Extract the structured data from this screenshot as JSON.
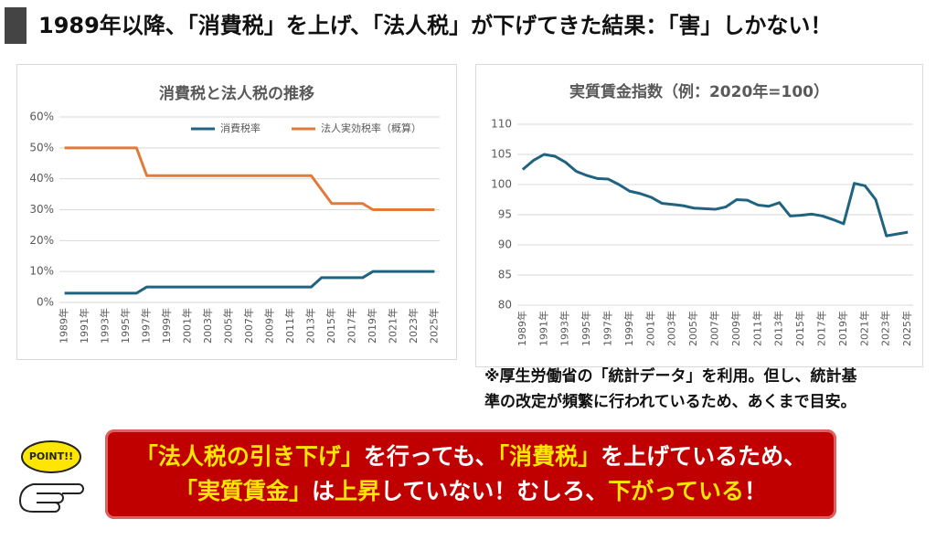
{
  "header": {
    "title": "1989年以降、「消費税」を上げ、「法人税」が下げてきた結果：「害」しかない！"
  },
  "chart_data": [
    {
      "type": "line",
      "title": "消費税と法人税の推移",
      "legend": "top",
      "categories": [
        "1989年",
        null,
        "1991年",
        null,
        "1993年",
        null,
        "1995年",
        null,
        "1997年",
        null,
        "1999年",
        null,
        "2001年",
        null,
        "2003年",
        null,
        "2005年",
        null,
        "2007年",
        null,
        "2009年",
        null,
        "2011年",
        null,
        "2013年",
        null,
        "2015年",
        null,
        "2017年",
        null,
        "2019年",
        null,
        "2021年",
        null,
        "2023年",
        null,
        "2025年"
      ],
      "series": [
        {
          "name": "消費税率",
          "color": "#1f6380",
          "values": [
            3,
            3,
            3,
            3,
            3,
            3,
            3,
            3,
            5,
            5,
            5,
            5,
            5,
            5,
            5,
            5,
            5,
            5,
            5,
            5,
            5,
            5,
            5,
            5,
            5,
            8,
            8,
            8,
            8,
            8,
            10,
            10,
            10,
            10,
            10,
            10,
            10
          ]
        },
        {
          "name": "法人実効税率（概算）",
          "color": "#e07b39",
          "values": [
            50,
            50,
            50,
            50,
            50,
            50,
            50,
            50,
            41,
            41,
            41,
            41,
            41,
            41,
            41,
            41,
            41,
            41,
            41,
            41,
            41,
            41,
            41,
            41,
            41,
            36.5,
            32,
            32,
            32,
            32,
            30,
            30,
            30,
            30,
            30,
            30,
            30
          ]
        }
      ],
      "ylim": [
        0,
        60
      ],
      "yticks": [
        {
          "value": 0,
          "label": "0%"
        },
        {
          "value": 10,
          "label": "10%"
        },
        {
          "value": 20,
          "label": "20%"
        },
        {
          "value": 30,
          "label": "30%"
        },
        {
          "value": 40,
          "label": "40%"
        },
        {
          "value": 50,
          "label": "50%"
        },
        {
          "value": 60,
          "label": "60%"
        }
      ],
      "grid": true
    },
    {
      "type": "line",
      "title": "実質賃金指数（例：2020年=100）",
      "categories": [
        "1989年",
        null,
        "1991年",
        null,
        "1993年",
        null,
        "1995年",
        null,
        "1997年",
        null,
        "1999年",
        null,
        "2001年",
        null,
        "2003年",
        null,
        "2005年",
        null,
        "2007年",
        null,
        "2009年",
        null,
        "2011年",
        null,
        "2013年",
        null,
        "2015年",
        null,
        "2017年",
        null,
        "2019年",
        null,
        "2021年",
        null,
        "2023年",
        null,
        "2025年"
      ],
      "values": [
        102.5,
        104,
        105,
        104.7,
        103.7,
        102.2,
        101.5,
        101,
        100.9,
        100,
        98.9,
        98.5,
        97.9,
        96.9,
        96.7,
        96.5,
        96.1,
        96,
        95.9,
        96.3,
        97.5,
        97.4,
        96.6,
        96.4,
        97,
        94.8,
        94.9,
        95.1,
        94.8,
        94.2,
        93.5,
        100.2,
        99.8,
        97.5,
        91.5,
        91.8,
        92.1
      ],
      "color": "#1f6380",
      "ylim": [
        80,
        110
      ],
      "yticks": [
        80,
        85,
        90,
        95,
        100,
        105,
        110
      ],
      "grid": true
    }
  ],
  "note": {
    "lines": [
      "※厚生労働省の「統計データ」を利用。但し、統計基",
      "準の改定が頻繁に行われているため、あくまで目安。"
    ]
  },
  "point_label": "POINT!!",
  "callout": {
    "lines": [
      [
        {
          "text": "「法人税の引き下げ」",
          "color": "#ffe600"
        },
        {
          "text": "を行っても、",
          "color": "#ffffff"
        },
        {
          "text": "「消費税」",
          "color": "#ffe600"
        },
        {
          "text": "を上げているため、",
          "color": "#ffffff"
        }
      ],
      [
        {
          "text": "「実質賃金」",
          "color": "#ffe600"
        },
        {
          "text": "は",
          "color": "#ffffff"
        },
        {
          "text": "上昇",
          "color": "#ffe600"
        },
        {
          "text": "していない！むしろ、",
          "color": "#ffffff"
        },
        {
          "text": "下がっている",
          "color": "#ffe600"
        },
        {
          "text": "！",
          "color": "#ffffff"
        }
      ]
    ]
  }
}
